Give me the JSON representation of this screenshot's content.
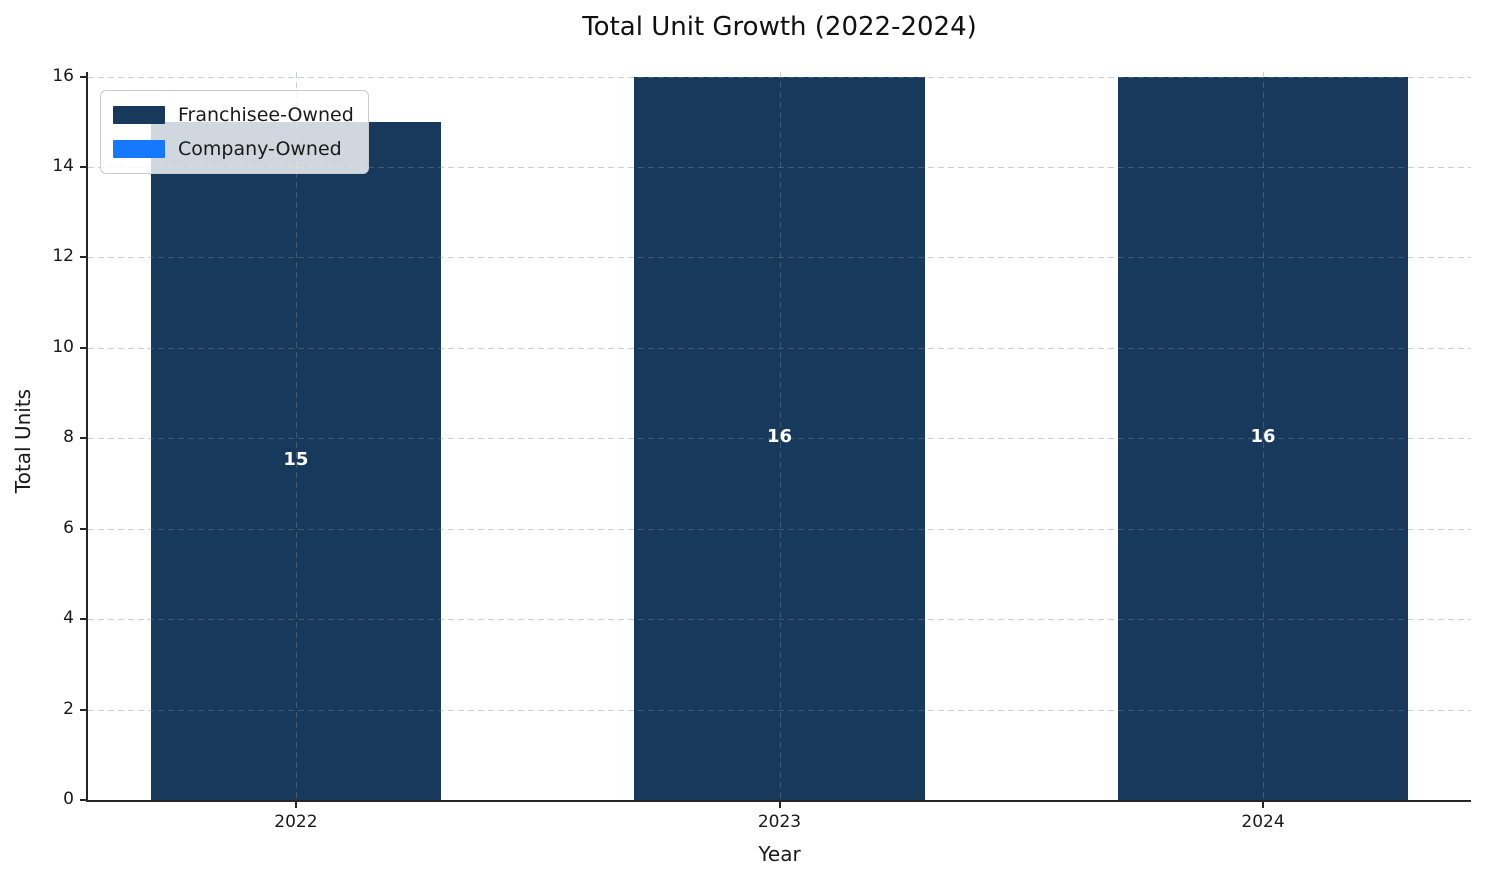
{
  "chart_data": {
    "type": "bar",
    "stacked": true,
    "title": "Total Unit Growth (2022-2024)",
    "xlabel": "Year",
    "ylabel": "Total Units",
    "categories": [
      "2022",
      "2023",
      "2024"
    ],
    "series": [
      {
        "name": "Franchisee-Owned",
        "color": "#17395C",
        "values": [
          15,
          16,
          16
        ]
      },
      {
        "name": "Company-Owned",
        "color": "#1677FF",
        "values": [
          0,
          0,
          0
        ]
      }
    ],
    "totals": [
      15,
      16,
      16
    ],
    "bar_total_labels": [
      "15",
      "16",
      "16"
    ],
    "yticks": [
      0,
      2,
      4,
      6,
      8,
      10,
      12,
      14,
      16
    ],
    "ylim": [
      0,
      16.1
    ],
    "bar_width_units": 0.6,
    "xlim": [
      -0.43,
      2.43
    ],
    "grid": "dashed, both axes, drawn over bars",
    "legend_position": "upper-left",
    "colors": {
      "spine": "#262626",
      "text": "#1a1a1a",
      "grid": "#d5d8db",
      "bar_label_text": "#ffffff",
      "legend_border": "#cccccc"
    }
  }
}
